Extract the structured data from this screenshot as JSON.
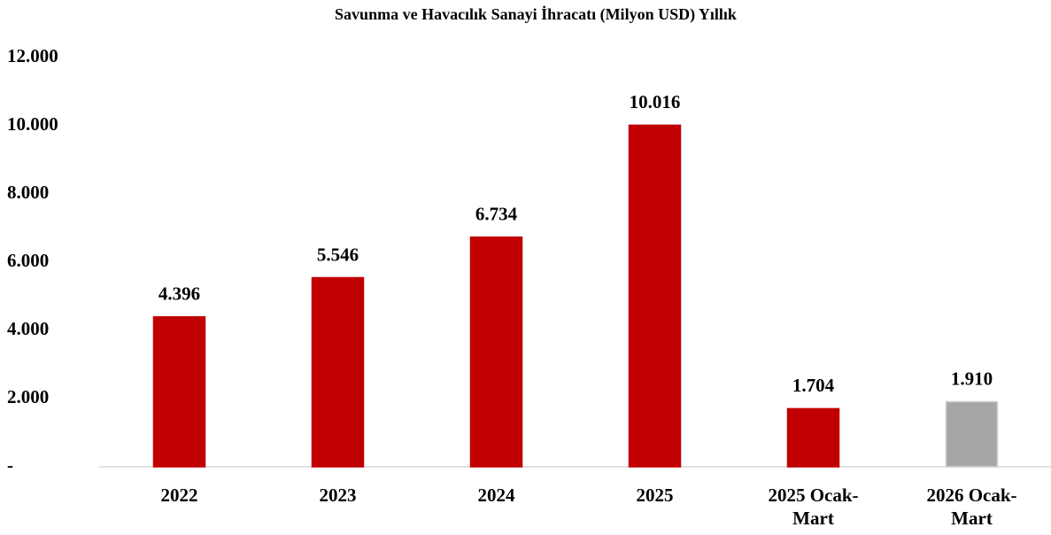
{
  "chart_data": {
    "type": "bar",
    "title": "Savunma ve Havacılık Sanayi İhracatı (Milyon USD) Yıllık",
    "categories": [
      "2022",
      "2023",
      "2024",
      "2025",
      "2025 Ocak-Mart",
      "2026 Ocak-Mart"
    ],
    "values": [
      4396,
      5546,
      6734,
      10016,
      1704,
      1910
    ],
    "value_labels": [
      "4.396",
      "5.546",
      "6.734",
      "10.016",
      "1.704",
      "1.910"
    ],
    "colors": [
      "#c00000",
      "#c00000",
      "#c00000",
      "#c00000",
      "#c00000",
      "#a6a6a6"
    ],
    "ylim": [
      0,
      12000
    ],
    "yticks": [
      {
        "value": 0,
        "label": "-"
      },
      {
        "value": 2000,
        "label": "2.000"
      },
      {
        "value": 4000,
        "label": "4.000"
      },
      {
        "value": 6000,
        "label": "6.000"
      },
      {
        "value": 8000,
        "label": "8.000"
      },
      {
        "value": 10000,
        "label": "10.000"
      },
      {
        "value": 12000,
        "label": "12.000"
      }
    ],
    "grid": false
  }
}
